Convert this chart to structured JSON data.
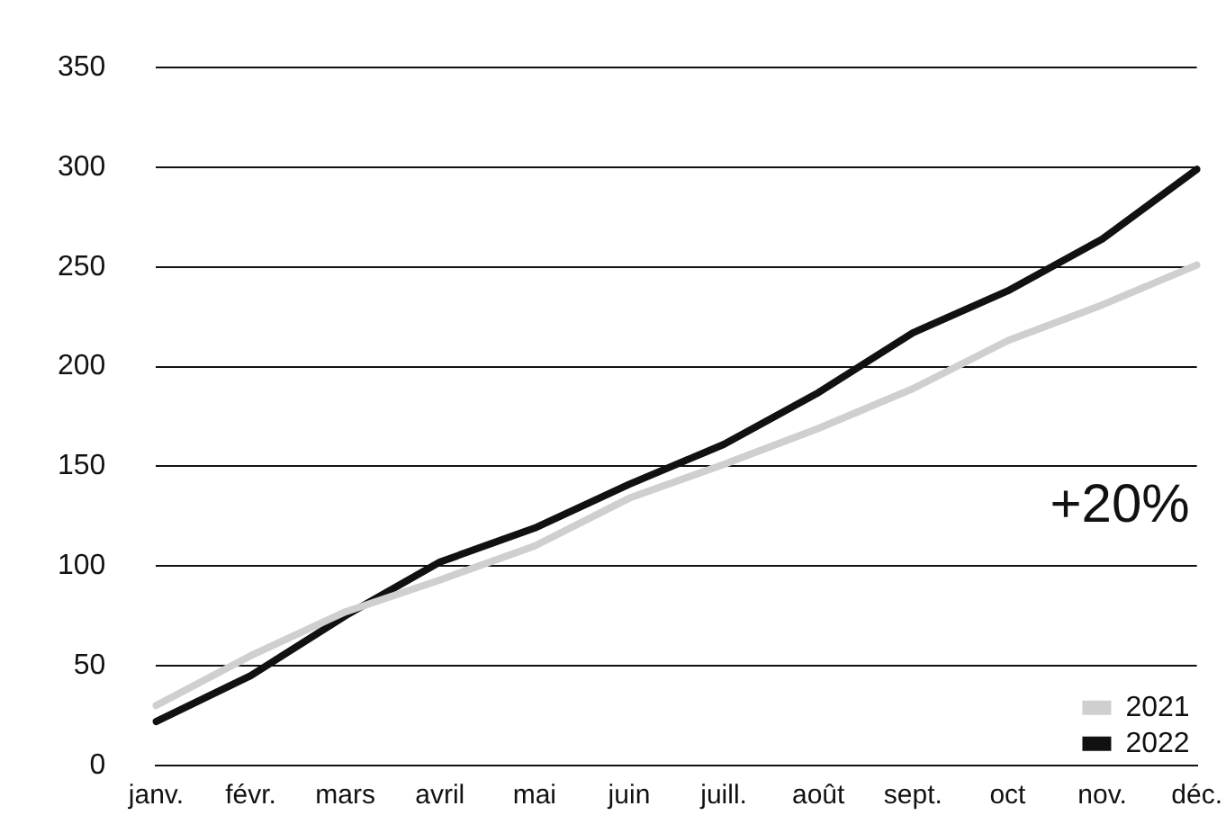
{
  "chart_data": {
    "type": "line",
    "categories": [
      "janv.",
      "févr.",
      "mars",
      "avril",
      "mai",
      "juin",
      "juill.",
      "août",
      "sept.",
      "oct",
      "nov.",
      "déc."
    ],
    "series": [
      {
        "name": "2021",
        "color": "#cfcfcf",
        "values": [
          30,
          55,
          77,
          93,
          110,
          134,
          151,
          169,
          189,
          213,
          231,
          251
        ]
      },
      {
        "name": "2022",
        "color": "#111111",
        "values": [
          22,
          45,
          75,
          102,
          119,
          141,
          161,
          187,
          217,
          238,
          264,
          299
        ]
      }
    ],
    "ylim": [
      0,
      350
    ],
    "yticks": [
      0,
      50,
      100,
      150,
      200,
      250,
      300,
      350
    ],
    "grid": "y",
    "legend": "bottom right",
    "marker": "none",
    "line_style": "solid",
    "annotations": [
      "+20%"
    ]
  }
}
